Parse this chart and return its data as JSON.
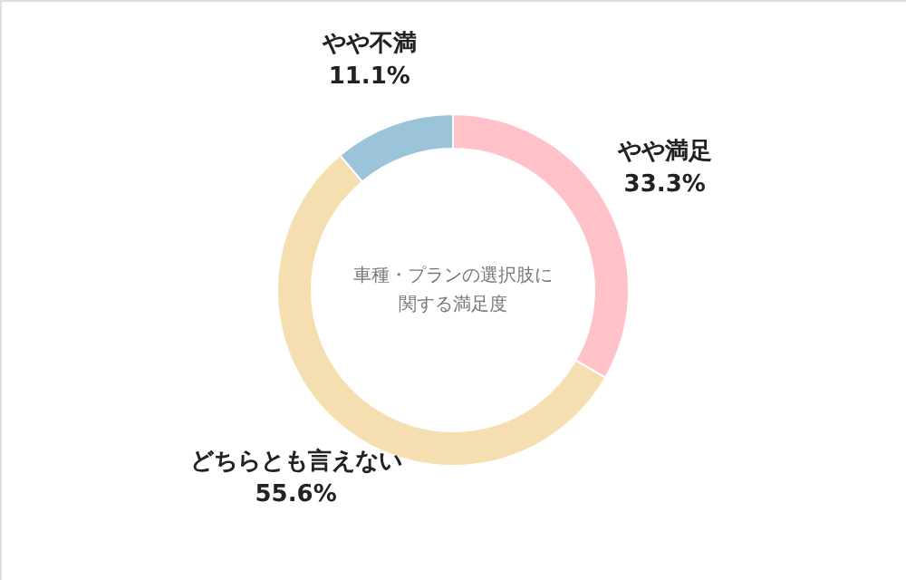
{
  "chart_data": {
    "type": "donut",
    "title": "車種・プランの選択肢に関する満足度",
    "categories": [
      "やや満足",
      "どちらとも言えない",
      "やや不満"
    ],
    "values": [
      33.3,
      55.6,
      11.1
    ],
    "value_labels": [
      "33.3%",
      "55.6%",
      "11.1%"
    ],
    "colors": [
      "#ffc2c9",
      "#f5dfb0",
      "#9cc4d8"
    ]
  }
}
